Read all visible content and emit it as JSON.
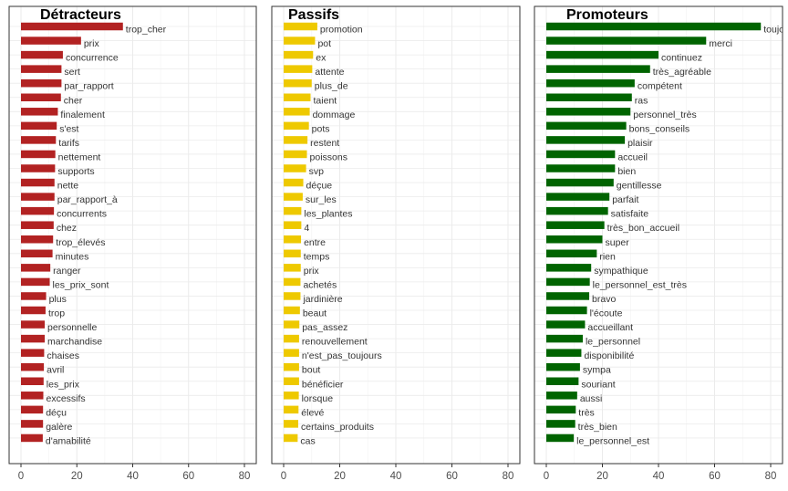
{
  "chart_data": [
    {
      "type": "bar",
      "orientation": "horizontal",
      "title": "Détracteurs",
      "color": "#b22222",
      "xlim": [
        0,
        80
      ],
      "xticks": [
        0,
        20,
        40,
        60,
        80
      ],
      "grid": true,
      "categories": [
        "trop_cher",
        "prix",
        "concurrence",
        "sert",
        "par_rapport",
        "cher",
        "finalement",
        "s'est",
        "tarifs",
        "nettement",
        "supports",
        "nette",
        "par_rapport_à",
        "concurrents",
        "chez",
        "trop_élevés",
        "minutes",
        "ranger",
        "les_prix_sont",
        "plus",
        "trop",
        "personnelle",
        "marchandise",
        "chaises",
        "avril",
        "les_prix",
        "excessifs",
        "déçu",
        "galère",
        "d'amabilité"
      ],
      "values": [
        36.5,
        21.5,
        15,
        14.5,
        14.5,
        14.3,
        13.2,
        12.8,
        12.5,
        12.3,
        12.2,
        12,
        12,
        11.8,
        11.7,
        11.5,
        11.3,
        10.5,
        10.3,
        9,
        8.8,
        8.5,
        8.5,
        8.3,
        8.2,
        8.1,
        8,
        7.9,
        7.9,
        7.8
      ]
    },
    {
      "type": "bar",
      "orientation": "horizontal",
      "title": "Passifs",
      "color": "#eec900",
      "xlim": [
        0,
        80
      ],
      "xticks": [
        0,
        20,
        40,
        60,
        80
      ],
      "grid": true,
      "categories": [
        "promotion",
        "pot",
        "ex",
        "attente",
        "plus_de",
        "taient",
        "dommage",
        "pots",
        "restent",
        "poissons",
        "svp",
        "déçue",
        "sur_les",
        "les_plantes",
        "4",
        "entre",
        "temps",
        "prix",
        "achetés",
        "jardinière",
        "beaut",
        "pas_assez",
        "renouvellement",
        "n'est_pas_toujours",
        "bout",
        "bénéficier",
        "lorsque",
        "élevé",
        "certains_produits",
        "cas"
      ],
      "values": [
        12,
        11.2,
        10.5,
        10.2,
        10,
        9.6,
        9.3,
        9,
        8.5,
        8.3,
        8,
        7,
        6.8,
        6.3,
        6.3,
        6.2,
        6.1,
        6.1,
        6,
        6,
        5.8,
        5.6,
        5.5,
        5.5,
        5.5,
        5.5,
        5.4,
        5.3,
        5.2,
        5
      ]
    },
    {
      "type": "bar",
      "orientation": "horizontal",
      "title": "Promoteurs",
      "color": "#006400",
      "xlim": [
        0,
        80
      ],
      "xticks": [
        0,
        20,
        40,
        60,
        80
      ],
      "grid": true,
      "categories": [
        "toujours",
        "merci",
        "continuez",
        "très_agréable",
        "compétent",
        "ras",
        "personnel_très",
        "bons_conseils",
        "plaisir",
        "accueil",
        "bien",
        "gentillesse",
        "parfait",
        "satisfaite",
        "très_bon_accueil",
        "super",
        "rien",
        "sympathique",
        "le_personnel_est_très",
        "bravo",
        "l'écoute",
        "accueillant",
        "le_personnel",
        "disponibilité",
        "sympa",
        "souriant",
        "aussi",
        "très",
        "très_bien",
        "le_personnel_est"
      ],
      "values": [
        76.5,
        57,
        40,
        37,
        31.5,
        30.5,
        30,
        28.5,
        28,
        24.5,
        24.5,
        24,
        22.5,
        22,
        20.7,
        20,
        18,
        16,
        15.5,
        15.3,
        14.5,
        13.8,
        13,
        12.5,
        12,
        11.5,
        11,
        10.5,
        10.3,
        9.8
      ]
    }
  ]
}
